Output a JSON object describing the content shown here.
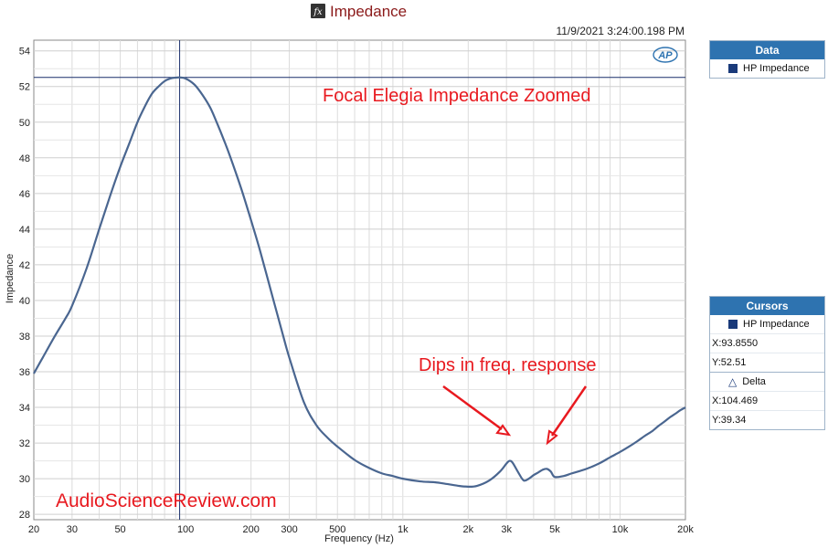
{
  "window": {
    "title": "Impedance",
    "timestamp": "11/9/2021 3:24:00.198 PM"
  },
  "icons": {
    "title_icon": "fx-icon",
    "brand_icon": "ap-logo-icon"
  },
  "colors": {
    "trace": "#4a6690",
    "annotation": "#e8191f",
    "panel_header": "#2e73b0",
    "swatch": "#1a3a7a"
  },
  "annotations": {
    "headline": "Focal Elegia Impedance Zoomed",
    "dips": "Dips in freq. response",
    "watermark": "AudioScienceReview.com",
    "brand": "AP"
  },
  "data_panel": {
    "header": "Data",
    "items": [
      {
        "label": "HP Impedance"
      }
    ]
  },
  "cursors_panel": {
    "header": "Cursors",
    "trace_label": "HP Impedance",
    "x": "X:93.8550",
    "y": "Y:52.51",
    "delta_label": "Delta",
    "delta_x": "X:104.469",
    "delta_y": "Y:39.34"
  },
  "chart_data": {
    "type": "line",
    "xlabel": "Frequency (Hz)",
    "ylabel": "Impedance",
    "xscale": "log",
    "xlim": [
      20,
      20000
    ],
    "ylim": [
      27.7,
      54.6
    ],
    "grid": true,
    "x_ticks": [
      {
        "value": 20,
        "label": "20"
      },
      {
        "value": 30,
        "label": "30"
      },
      {
        "value": 50,
        "label": "50"
      },
      {
        "value": 100,
        "label": "100"
      },
      {
        "value": 200,
        "label": "200"
      },
      {
        "value": 300,
        "label": "300"
      },
      {
        "value": 500,
        "label": "500"
      },
      {
        "value": 1000,
        "label": "1k"
      },
      {
        "value": 2000,
        "label": "2k"
      },
      {
        "value": 3000,
        "label": "3k"
      },
      {
        "value": 5000,
        "label": "5k"
      },
      {
        "value": 10000,
        "label": "10k"
      },
      {
        "value": 20000,
        "label": "20k"
      }
    ],
    "y_ticks": [
      {
        "value": 28,
        "label": "28"
      },
      {
        "value": 30,
        "label": "30"
      },
      {
        "value": 32,
        "label": "32"
      },
      {
        "value": 34,
        "label": "34"
      },
      {
        "value": 36,
        "label": "36"
      },
      {
        "value": 38,
        "label": "38"
      },
      {
        "value": 40,
        "label": "40"
      },
      {
        "value": 42,
        "label": "42"
      },
      {
        "value": 44,
        "label": "44"
      },
      {
        "value": 46,
        "label": "46"
      },
      {
        "value": 48,
        "label": "48"
      },
      {
        "value": 50,
        "label": "50"
      },
      {
        "value": 52,
        "label": "52"
      },
      {
        "value": 54,
        "label": "54"
      }
    ],
    "cursor": {
      "x": 93.855,
      "y": 52.51
    },
    "series": [
      {
        "name": "HP Impedance",
        "x": [
          20,
          22,
          25,
          28,
          30,
          35,
          40,
          45,
          50,
          55,
          60,
          65,
          70,
          75,
          80,
          85,
          90,
          93.855,
          100,
          110,
          120,
          130,
          140,
          150,
          160,
          180,
          200,
          220,
          250,
          280,
          300,
          350,
          400,
          450,
          500,
          600,
          700,
          800,
          900,
          1000,
          1200,
          1400,
          1600,
          1800,
          2000,
          2200,
          2500,
          2800,
          3000,
          3100,
          3200,
          3400,
          3600,
          3800,
          4000,
          4200,
          4400,
          4600,
          4800,
          5000,
          5500,
          6000,
          7000,
          8000,
          9000,
          10000,
          11000,
          12000,
          13000,
          14000,
          15000,
          16000,
          17000,
          18000,
          19000,
          20000
        ],
        "y": [
          35.9,
          36.8,
          38.0,
          39.0,
          39.7,
          41.8,
          44.0,
          45.9,
          47.5,
          48.8,
          50.0,
          50.9,
          51.6,
          52.0,
          52.3,
          52.45,
          52.5,
          52.51,
          52.45,
          52.1,
          51.5,
          50.8,
          49.9,
          49.0,
          48.1,
          46.3,
          44.5,
          42.8,
          40.3,
          38.1,
          36.8,
          34.3,
          33.0,
          32.3,
          31.8,
          31.05,
          30.6,
          30.3,
          30.15,
          30.0,
          29.85,
          29.8,
          29.7,
          29.6,
          29.55,
          29.6,
          29.9,
          30.4,
          30.85,
          31.0,
          30.9,
          30.35,
          29.9,
          30.0,
          30.2,
          30.35,
          30.5,
          30.55,
          30.4,
          30.1,
          30.15,
          30.3,
          30.55,
          30.85,
          31.2,
          31.5,
          31.8,
          32.1,
          32.4,
          32.65,
          32.95,
          33.2,
          33.45,
          33.65,
          33.85,
          34.0
        ]
      }
    ]
  }
}
